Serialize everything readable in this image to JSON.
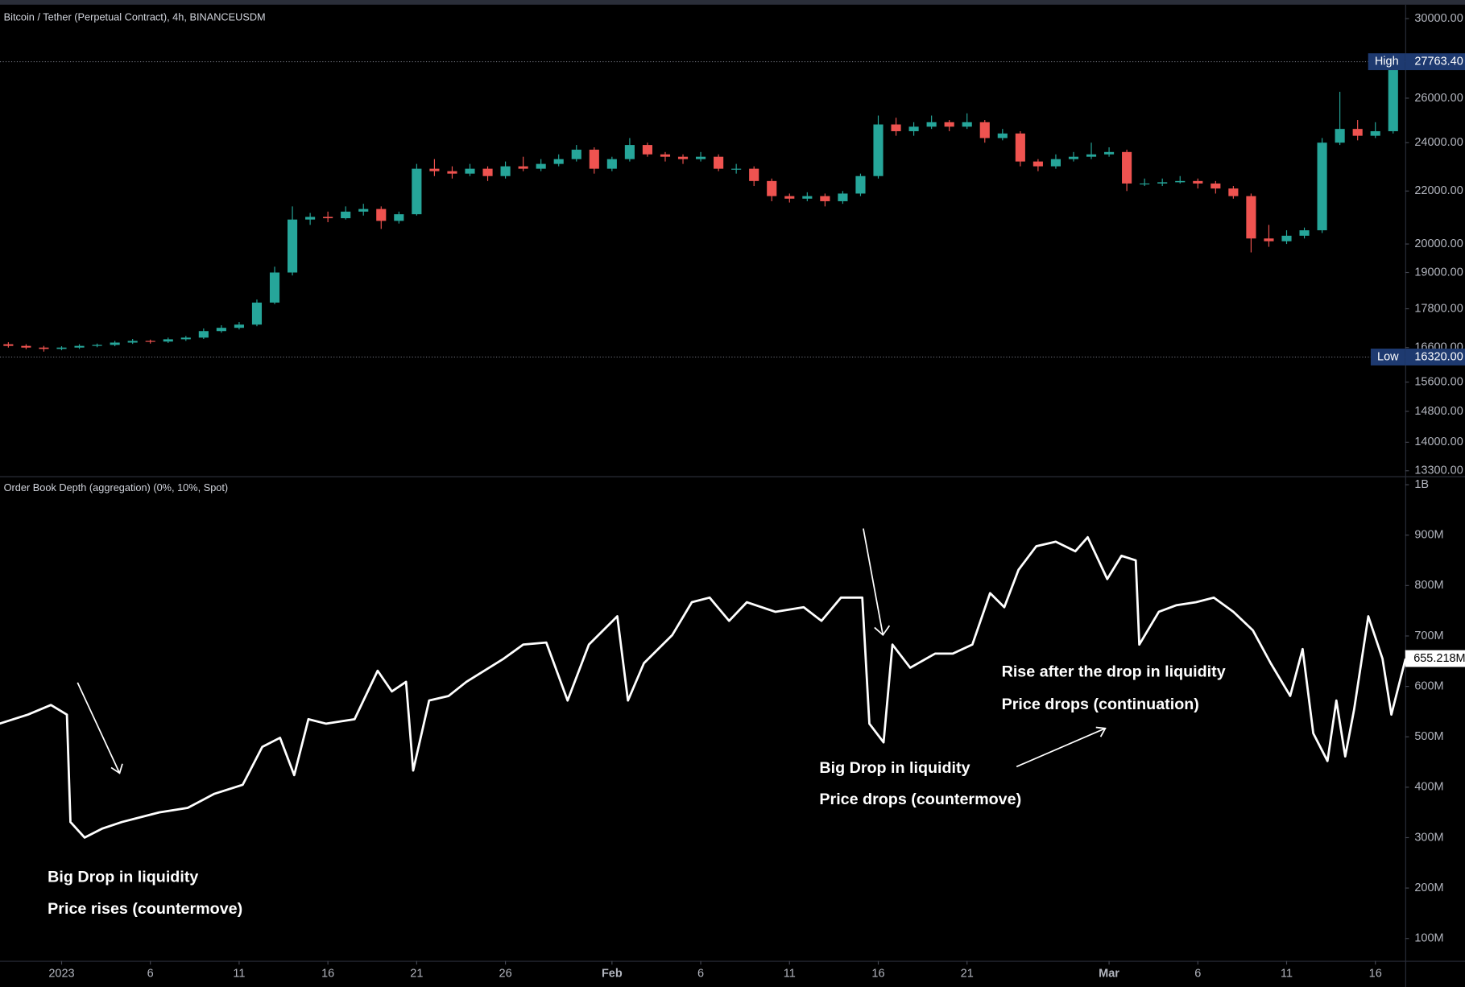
{
  "chart_data": [
    {
      "type": "candlestick",
      "title": "Bitcoin / Tether (Perpetual Contract), 4h, BINANCEUSDM",
      "log_scale": true,
      "up_color": "#26a69a",
      "down_color": "#ef5350",
      "xlim": [
        -3.47,
        75.68
      ],
      "ylim": [
        13170,
        30660
      ],
      "yticks": [
        {
          "value": 30000,
          "label": "30000.00"
        },
        {
          "value": 26000,
          "label": "26000.00"
        },
        {
          "value": 24000,
          "label": "24000.00"
        },
        {
          "value": 22000,
          "label": "22000.00"
        },
        {
          "value": 20000,
          "label": "20000.00"
        },
        {
          "value": 19000,
          "label": "19000.00"
        },
        {
          "value": 17800,
          "label": "17800.00"
        },
        {
          "value": 16600,
          "label": "16600.00"
        },
        {
          "value": 15600,
          "label": "15600.00"
        },
        {
          "value": 14800,
          "label": "14800.00"
        },
        {
          "value": 14000,
          "label": "14000.00"
        },
        {
          "value": 13300,
          "label": "13300.00"
        }
      ],
      "high_marker": {
        "label": "High",
        "value": 27763.4,
        "value_label": "27763.40"
      },
      "low_marker": {
        "label": "Low",
        "value": 16320,
        "value_label": "16320.00"
      },
      "x": [
        -3,
        -2,
        -1,
        0,
        1,
        2,
        3,
        4,
        5,
        6,
        7,
        8,
        9,
        10,
        11,
        12,
        13,
        14,
        15,
        16,
        17,
        18,
        19,
        20,
        21,
        22,
        23,
        24,
        25,
        26,
        27,
        28,
        29,
        30,
        31,
        32,
        33,
        34,
        35,
        36,
        37,
        38,
        39,
        40,
        41,
        42,
        43,
        44,
        45,
        46,
        47,
        48,
        49,
        50,
        51,
        52,
        53,
        54,
        55,
        56,
        57,
        58,
        59,
        60,
        61,
        62,
        63,
        64,
        65,
        66,
        67,
        68,
        69,
        70,
        71,
        72,
        73,
        74,
        75
      ],
      "open": [
        16700,
        16650,
        16600,
        16560,
        16600,
        16650,
        16680,
        16750,
        16800,
        16780,
        16850,
        16900,
        17100,
        17200,
        17300,
        18000,
        19000,
        20900,
        21000,
        20950,
        21200,
        21300,
        20850,
        21100,
        22900,
        22800,
        22700,
        22900,
        22600,
        23000,
        22900,
        23100,
        23300,
        23700,
        22900,
        23300,
        23900,
        23500,
        23400,
        23300,
        23400,
        22900,
        22900,
        22400,
        21800,
        21700,
        21800,
        21600,
        21900,
        22600,
        24800,
        24500,
        24700,
        24900,
        24700,
        24900,
        24200,
        24400,
        23200,
        23000,
        23300,
        23400,
        23500,
        23600,
        22300,
        22300,
        22350,
        22400,
        22300,
        22100,
        21800,
        20200,
        20100,
        20300,
        20500,
        24000,
        24600,
        24300,
        24500
      ],
      "high": [
        16760,
        16700,
        16650,
        16640,
        16700,
        16720,
        16800,
        16860,
        16840,
        16900,
        16950,
        17180,
        17280,
        17380,
        18100,
        19200,
        21400,
        21150,
        21200,
        21400,
        21500,
        21400,
        21200,
        23100,
        23300,
        23000,
        23100,
        23000,
        23200,
        23400,
        23300,
        23500,
        23900,
        23800,
        23400,
        24200,
        24000,
        23600,
        23500,
        23600,
        23500,
        23100,
        23000,
        22500,
        21900,
        21950,
        21900,
        22000,
        22700,
        25200,
        25100,
        24900,
        25200,
        25000,
        25300,
        25000,
        24600,
        24500,
        23300,
        23500,
        23600,
        24000,
        23800,
        23700,
        22500,
        22500,
        22600,
        22500,
        22400,
        22200,
        21900,
        20700,
        20500,
        20600,
        24200,
        26300,
        25000,
        24900,
        27763.4
      ],
      "low": [
        16600,
        16550,
        16480,
        16520,
        16560,
        16610,
        16640,
        16710,
        16720,
        16740,
        16800,
        16860,
        17050,
        17150,
        17250,
        17950,
        18900,
        20700,
        20800,
        20900,
        21050,
        20550,
        20750,
        21050,
        22600,
        22500,
        22600,
        22400,
        22500,
        22800,
        22800,
        23000,
        23200,
        22700,
        22800,
        23200,
        23400,
        23200,
        23100,
        23200,
        22800,
        22700,
        22200,
        21600,
        21550,
        21600,
        21400,
        21500,
        21800,
        22500,
        24300,
        24300,
        24600,
        24500,
        24600,
        24000,
        24100,
        23000,
        22800,
        22900,
        23200,
        23300,
        23400,
        22000,
        22200,
        22200,
        22300,
        22100,
        21900,
        21700,
        19700,
        19900,
        20000,
        20200,
        20400,
        23900,
        24100,
        24200,
        24400
      ],
      "close": [
        16650,
        16600,
        16560,
        16600,
        16650,
        16680,
        16750,
        16800,
        16780,
        16850,
        16900,
        17100,
        17200,
        17300,
        18000,
        19000,
        20900,
        21000,
        20950,
        21200,
        21300,
        20850,
        21100,
        22900,
        22800,
        22700,
        22900,
        22600,
        23000,
        22900,
        23100,
        23300,
        23700,
        22900,
        23300,
        23900,
        23500,
        23400,
        23300,
        23400,
        22900,
        22900,
        22400,
        21800,
        21700,
        21800,
        21600,
        21900,
        22600,
        24800,
        24500,
        24700,
        24900,
        24700,
        24900,
        24200,
        24400,
        23200,
        23000,
        23300,
        23400,
        23500,
        23600,
        22300,
        22300,
        22350,
        22400,
        22300,
        22100,
        21800,
        20200,
        20100,
        20300,
        20500,
        24000,
        24600,
        24300,
        24500,
        27700
      ]
    },
    {
      "type": "line",
      "title": "Order Book Depth (aggregation) (0%, 10%, Spot)",
      "color": "#ffffff",
      "xlim": [
        -3.47,
        75.68
      ],
      "ylim": [
        55.6,
        1015
      ],
      "yticks": [
        {
          "value": 1000,
          "label": "1B"
        },
        {
          "value": 900,
          "label": "900M"
        },
        {
          "value": 800,
          "label": "800M"
        },
        {
          "value": 700,
          "label": "700M"
        },
        {
          "value": 600,
          "label": "600M"
        },
        {
          "value": 500,
          "label": "500M"
        },
        {
          "value": 400,
          "label": "400M"
        },
        {
          "value": 300,
          "label": "300M"
        },
        {
          "value": 200,
          "label": "200M"
        },
        {
          "value": 100,
          "label": "100M"
        }
      ],
      "xticks": [
        {
          "value": 0,
          "label": "2023"
        },
        {
          "value": 5,
          "label": "6"
        },
        {
          "value": 10,
          "label": "11"
        },
        {
          "value": 15,
          "label": "16"
        },
        {
          "value": 20,
          "label": "21"
        },
        {
          "value": 25,
          "label": "26"
        },
        {
          "value": 31,
          "label": "Feb"
        },
        {
          "value": 36,
          "label": "6"
        },
        {
          "value": 41,
          "label": "11"
        },
        {
          "value": 46,
          "label": "16"
        },
        {
          "value": 51,
          "label": "21"
        },
        {
          "value": 59,
          "label": "Mar"
        },
        {
          "value": 64,
          "label": "6"
        },
        {
          "value": 69,
          "label": "11"
        },
        {
          "value": 74,
          "label": "16"
        }
      ],
      "last_value": {
        "value": 655.218,
        "label": "655.218M"
      },
      "annotations": [
        "Big Drop in liquidity",
        "Price rises (countermove)",
        "Big Drop in liquidity",
        "Price drops (countermove)",
        "Rise after the drop in liquidity",
        "Price drops (continuation)"
      ],
      "x": [
        -3.5,
        -1.9,
        -0.6,
        0.3,
        0.5,
        1.3,
        2.3,
        3.4,
        4.4,
        5.5,
        7.1,
        8.6,
        10.2,
        11.3,
        12.3,
        13.1,
        13.9,
        14.9,
        16.5,
        17.8,
        18.6,
        19.4,
        19.8,
        20.7,
        21.8,
        22.8,
        24.9,
        26,
        27.3,
        28.5,
        29.7,
        31.3,
        31.9,
        32.8,
        34.4,
        35.5,
        36.5,
        37.6,
        38.6,
        40.2,
        41.8,
        42.8,
        43.9,
        45.1,
        45.5,
        46.3,
        46.8,
        47.8,
        49.2,
        50.2,
        51.3,
        52.3,
        53.1,
        53.9,
        54.9,
        56,
        57.1,
        57.8,
        58.9,
        59.7,
        60.5,
        60.7,
        61.8,
        62.8,
        63.9,
        64.9,
        66,
        67.1,
        68.1,
        69.2,
        69.9,
        70.5,
        71.3,
        71.8,
        72.3,
        72.8,
        73.6,
        74.4,
        74.9,
        75.7
      ],
      "values": [
        526,
        544,
        563,
        544,
        331,
        300,
        318,
        331,
        340,
        350,
        359,
        387,
        405,
        480,
        498,
        424,
        535,
        526,
        535,
        631,
        590,
        609,
        433,
        572,
        581,
        609,
        655,
        683,
        687,
        572,
        683,
        739,
        572,
        646,
        702,
        767,
        776,
        730,
        767,
        748,
        757,
        730,
        776,
        776,
        526,
        489,
        683,
        637,
        665,
        665,
        683,
        785,
        757,
        831,
        878,
        887,
        868,
        896,
        813,
        859,
        850,
        683,
        748,
        761,
        767,
        776,
        748,
        711,
        646,
        581,
        674,
        507,
        452,
        572,
        461,
        554,
        739,
        655,
        544,
        655.218
      ]
    }
  ]
}
